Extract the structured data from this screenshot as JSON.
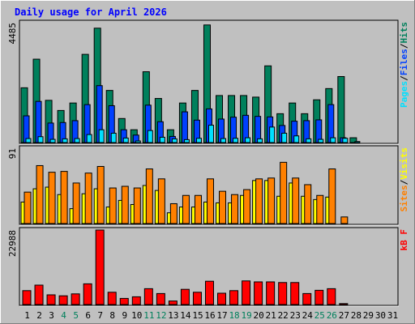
{
  "chart_data": {
    "type": "bar",
    "title": "Daily usage for April 2026",
    "categories": [
      "1",
      "2",
      "3",
      "4",
      "5",
      "6",
      "7",
      "8",
      "9",
      "10",
      "11",
      "12",
      "13",
      "14",
      "15",
      "16",
      "17",
      "18",
      "19",
      "20",
      "21",
      "22",
      "23",
      "24",
      "25",
      "26",
      "27",
      "28",
      "29",
      "30",
      "31"
    ],
    "weekend_days": [
      "4",
      "5",
      "11",
      "12",
      "18",
      "19",
      "25",
      "26"
    ],
    "panels": [
      {
        "id": "requests",
        "ylabel_parts": [
          "Pages",
          "/",
          "Files",
          "/",
          "Hits"
        ],
        "ymax": 4485,
        "ymax_label": "4485",
        "series": [
          {
            "name": "Hits",
            "values": [
              2050,
              3120,
              1580,
              1200,
              1480,
              3300,
              4280,
              1950,
              900,
              480,
              2650,
              1650,
              480,
              1480,
              1950,
              4400,
              1760,
              1760,
              1760,
              1700,
              2870,
              1080,
              1480,
              1080,
              1600,
              2020,
              2470,
              180,
              0,
              0,
              0
            ]
          },
          {
            "name": "Files",
            "values": [
              1000,
              1540,
              730,
              750,
              820,
              1420,
              2130,
              1380,
              480,
              280,
              1400,
              780,
              230,
              1150,
              840,
              1260,
              880,
              950,
              1020,
              980,
              960,
              640,
              800,
              820,
              850,
              1420,
              180,
              0,
              0,
              0,
              0
            ]
          },
          {
            "name": "Pages",
            "values": [
              150,
              220,
              120,
              140,
              150,
              300,
              480,
              350,
              170,
              60,
              450,
              200,
              140,
              110,
              160,
              650,
              150,
              160,
              180,
              140,
              580,
              350,
              250,
              140,
              120,
              180,
              160,
              40,
              0,
              0,
              0
            ]
          }
        ]
      },
      {
        "id": "visits",
        "ylabel_parts": [
          "Sites",
          "/",
          "Visits"
        ],
        "ymax": 91,
        "ymax_label": "91",
        "series": [
          {
            "name": "Visits",
            "values": [
              26,
              42,
              44,
              35,
              18,
              36,
              42,
              20,
              28,
              23,
              46,
              40,
              13,
              20,
              20,
              26,
              25,
              25,
              34,
              52,
              52,
              33,
              49,
              33,
              29,
              32,
              0,
              0,
              0,
              0,
              0
            ]
          },
          {
            "name": "Sites",
            "values": [
              38,
              70,
              62,
              63,
              49,
              61,
              69,
              43,
              45,
              43,
              66,
              54,
              24,
              34,
              34,
              54,
              39,
              35,
              41,
              54,
              55,
              74,
              55,
              47,
              34,
              66,
              8,
              0,
              0,
              0,
              0
            ]
          }
        ]
      },
      {
        "id": "kbytes",
        "ylabel_parts": [
          "kB F"
        ],
        "ymax": 22988,
        "ymax_label": "22988",
        "series": [
          {
            "name": "kB F",
            "values": [
              4300,
              6000,
              3000,
              2700,
              3300,
              6400,
              22988,
              3800,
              1900,
              2400,
              4900,
              3400,
              1100,
              4700,
              3800,
              7200,
              3500,
              4300,
              7300,
              7000,
              7000,
              6800,
              6800,
              3400,
              4400,
              4900,
              300,
              0,
              0,
              0,
              0
            ]
          }
        ]
      }
    ]
  },
  "colors": {
    "hits": "#00805c",
    "files": "#0040ff",
    "pages": "#00e0ff",
    "visits": "#ffff00",
    "sites": "#ff8000",
    "kbytes": "#ff0000",
    "title": "#0000ff",
    "weekend_label": "#00805c",
    "weekday_label": "#000000",
    "background": "#c0c0c0"
  }
}
